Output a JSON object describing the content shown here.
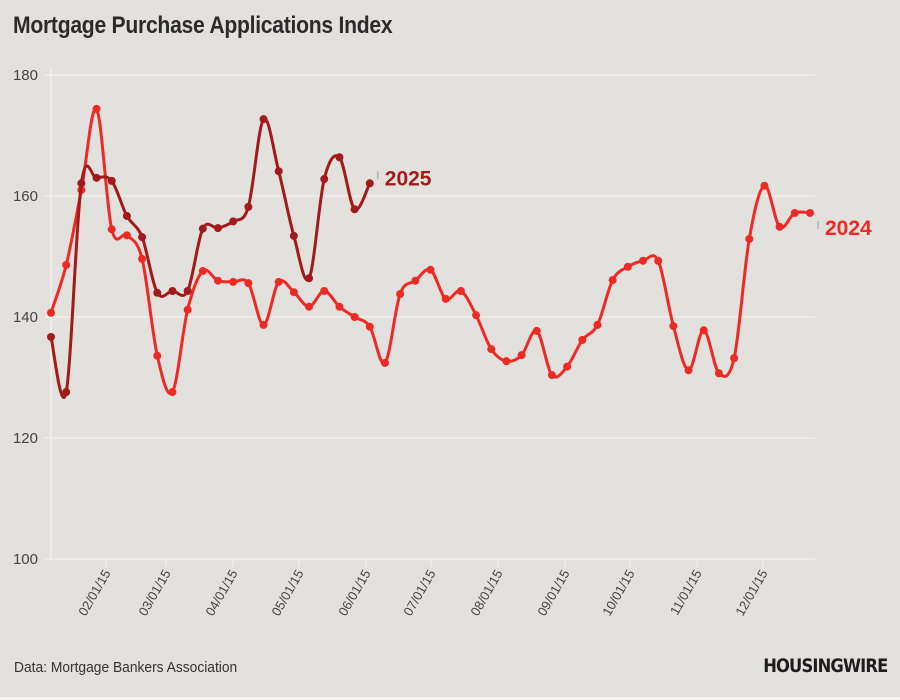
{
  "header": {
    "title": "Mortgage Purchase Applications Index"
  },
  "footer": {
    "source": "Data: Mortgage Bankers Association",
    "logo_text": "HOUSINGWIRE"
  },
  "colors": {
    "background": "#e3e1de",
    "grid": "#f1efec",
    "series_2024": "#ee2a24",
    "series_2025": "#a31a1a"
  },
  "chart_data": {
    "type": "line",
    "title": "Mortgage Purchase Applications Index",
    "xlabel": "",
    "ylabel": "",
    "ylim": [
      100,
      180
    ],
    "yticks": [
      "100",
      "120",
      "140",
      "160",
      "180"
    ],
    "ytick_values": [
      100,
      120,
      140,
      160,
      180
    ],
    "x_unit": "week index",
    "xlim": [
      0,
      50
    ],
    "xtick_labels": [
      "02/01/15",
      "03/01/15",
      "04/01/15",
      "05/01/15",
      "06/01/15",
      "07/01/15",
      "08/01/15",
      "09/01/15",
      "10/01/15",
      "11/01/15",
      "12/01/15"
    ],
    "xtick_positions": [
      3.62,
      7.58,
      11.99,
      16.34,
      20.75,
      25.03,
      29.45,
      33.86,
      38.14,
      42.56,
      46.9
    ],
    "grid": true,
    "series": [
      {
        "name": "2024",
        "color": "#ee2a24",
        "values": [
          140.7,
          148.6,
          161.0,
          174.4,
          154.5,
          153.5,
          149.6,
          133.6,
          127.6,
          141.2,
          147.6,
          146.0,
          145.8,
          145.6,
          138.7,
          145.8,
          144.1,
          141.7,
          144.3,
          141.7,
          140.0,
          138.4,
          132.4,
          143.8,
          146.0,
          147.8,
          143.0,
          144.3,
          140.3,
          134.7,
          132.7,
          133.7,
          137.7,
          130.4,
          131.8,
          136.2,
          138.7,
          146.1,
          148.3,
          149.3,
          149.3,
          138.5,
          131.2,
          137.8,
          130.7,
          133.2,
          152.9,
          161.7,
          154.9,
          157.2,
          157.2
        ]
      },
      {
        "name": "2025",
        "color": "#a31a1a",
        "values": [
          136.7,
          127.6,
          162.1,
          163.0,
          162.5,
          156.7,
          153.2,
          144.0,
          144.3,
          144.3,
          154.6,
          154.7,
          155.8,
          158.2,
          172.7,
          164.1,
          153.4,
          146.4,
          162.8,
          166.4,
          157.8,
          162.1
        ]
      }
    ]
  }
}
